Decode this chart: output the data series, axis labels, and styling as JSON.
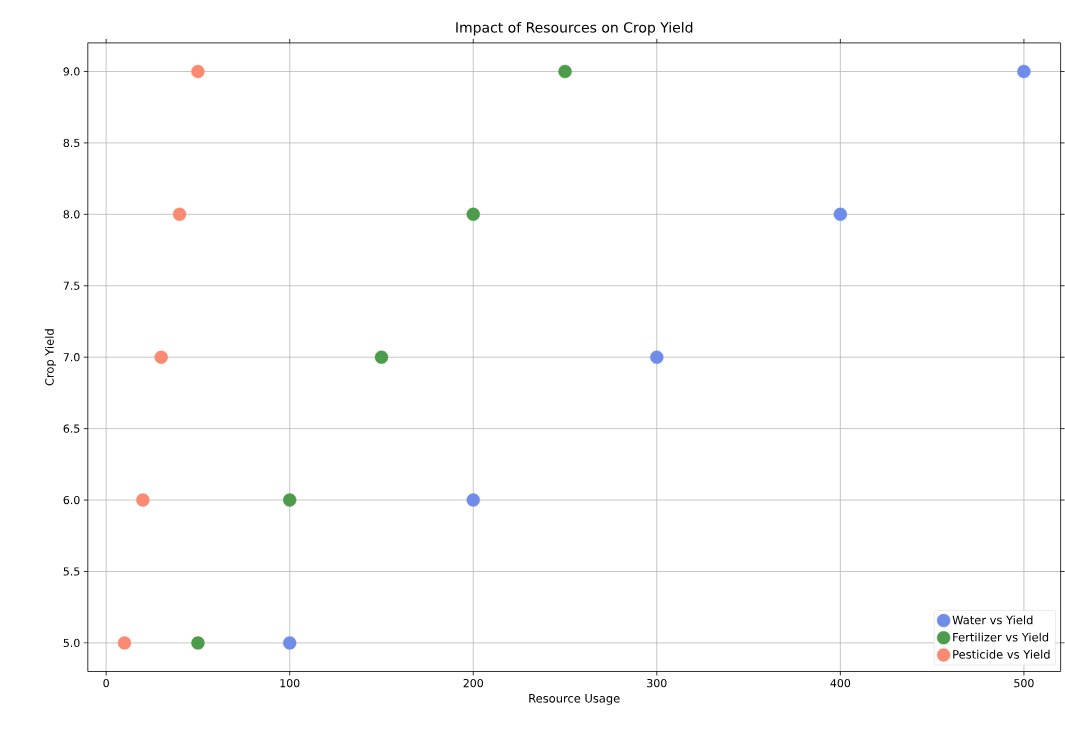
{
  "chart_data": {
    "type": "scatter",
    "title": "Impact of Resources on Crop Yield",
    "xlabel": "Resource Usage",
    "ylabel": "Crop Yield",
    "series": [
      {
        "name": "Water vs Yield",
        "color": "#6f8de8",
        "x": [
          100,
          200,
          300,
          400,
          500
        ],
        "values": [
          5,
          6,
          7,
          8,
          9
        ]
      },
      {
        "name": "Fertilizer vs Yield",
        "color": "#4c9c4c",
        "x": [
          50,
          100,
          150,
          200,
          250
        ],
        "values": [
          5,
          6,
          7,
          8,
          9
        ]
      },
      {
        "name": "Pesticide vs Yield",
        "color": "#fb8a73",
        "x": [
          10,
          20,
          30,
          40,
          50
        ],
        "values": [
          5,
          6,
          7,
          8,
          9
        ]
      }
    ],
    "xlim": [
      -10,
      520
    ],
    "ylim": [
      4.8,
      9.2
    ],
    "xticks": [
      0,
      100,
      200,
      300,
      400,
      500
    ],
    "yticks": [
      {
        "value": 5,
        "label": "5.0"
      },
      {
        "value": 5.5,
        "label": "5.5"
      },
      {
        "value": 6,
        "label": "6.0"
      },
      {
        "value": 6.5,
        "label": "6.5"
      },
      {
        "value": 7,
        "label": "7.0"
      },
      {
        "value": 7.5,
        "label": "7.5"
      },
      {
        "value": 8,
        "label": "8.0"
      },
      {
        "value": 8.5,
        "label": "8.5"
      },
      {
        "value": 9,
        "label": "9.0"
      }
    ],
    "grid": true,
    "legend": "bottom right"
  }
}
